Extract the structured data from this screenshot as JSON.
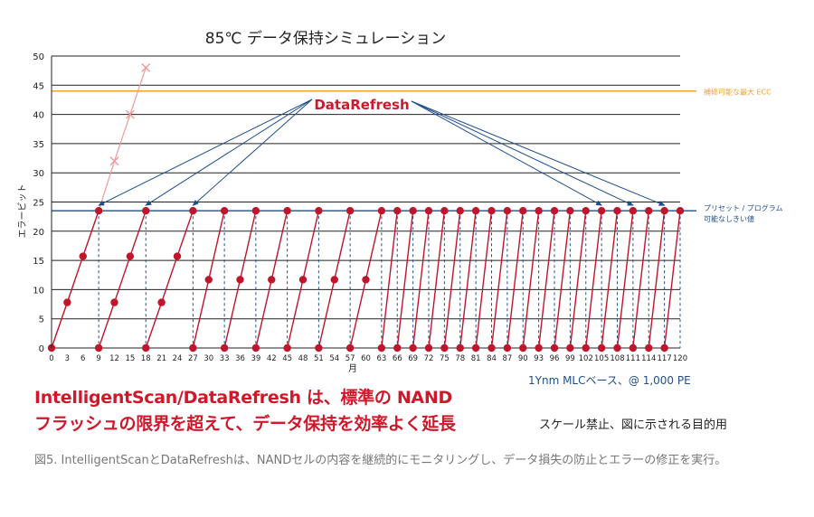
{
  "title": "85℃ データ保持シミュレーション",
  "headline": {
    "line1": "IntelligentScan/DataRefresh は、標準の NAND",
    "line2": "フラッシュの限界を超えて、データ保持を効率よく延長"
  },
  "note_scale": "スケール禁止、図に示される目的用",
  "note_basis": "1Ynm MLCベース、@ 1,000 PE",
  "caption": "図5. IntelligentScanとDataRefreshは、NANDセルの内容を継続的にモニタリングし、データ損失の防止とエラーの修正を実行。",
  "colors": {
    "refresh_line": "#c0152a",
    "raw_nand_line": "#f09a9a",
    "ecc_line": "#f0a030",
    "threshold_line": "#1f4e8c",
    "arrow": "#1f4e8c",
    "label_red": "#d0182a"
  },
  "chart_data": {
    "type": "line",
    "title": "85℃ データ保持シミュレーション",
    "xlabel": "月",
    "ylabel": "エラービット",
    "xlim": [
      0,
      120
    ],
    "ylim": [
      0,
      50
    ],
    "x_ticks": [
      0,
      3,
      6,
      9,
      12,
      15,
      18,
      21,
      24,
      27,
      30,
      33,
      36,
      39,
      42,
      45,
      48,
      51,
      54,
      57,
      60,
      63,
      66,
      69,
      72,
      75,
      78,
      81,
      84,
      87,
      90,
      93,
      96,
      99,
      102,
      105,
      108,
      111,
      114,
      117,
      120
    ],
    "y_ticks": [
      0,
      5,
      10,
      15,
      20,
      25,
      30,
      35,
      40,
      45,
      50
    ],
    "grid": true,
    "reference_lines": [
      {
        "name": "補修可能な最大 ECC",
        "y": 44
      },
      {
        "name": "プリセット / プログラム\n可能なしきい値",
        "y": 23.5
      }
    ],
    "refresh_label": "DataRefresh",
    "refresh_arrow_targets": [
      9,
      18,
      27,
      105,
      111,
      117
    ],
    "series": [
      {
        "name": "",
        "style": "raw",
        "points": [
          [
            0,
            0
          ],
          [
            3,
            7.8
          ],
          [
            6,
            15.7
          ],
          [
            9,
            23.5
          ],
          [
            12,
            32
          ],
          [
            15,
            40
          ],
          [
            18,
            48
          ]
        ]
      },
      {
        "name": "",
        "style": "refresh",
        "cycles": [
          {
            "start": 0,
            "points": [
              [
                0,
                0
              ],
              [
                3,
                7.8
              ],
              [
                6,
                15.7
              ],
              [
                9,
                23.5
              ]
            ]
          },
          {
            "start": 9,
            "points": [
              [
                9,
                0
              ],
              [
                12,
                7.8
              ],
              [
                15,
                15.7
              ],
              [
                18,
                23.5
              ]
            ]
          },
          {
            "start": 18,
            "points": [
              [
                18,
                0
              ],
              [
                21,
                7.8
              ],
              [
                24,
                15.7
              ],
              [
                27,
                23.5
              ]
            ]
          },
          {
            "start": 27,
            "points": [
              [
                27,
                0
              ],
              [
                30,
                11.7
              ],
              [
                33,
                23.5
              ]
            ]
          },
          {
            "start": 33,
            "points": [
              [
                33,
                0
              ],
              [
                36,
                11.7
              ],
              [
                39,
                23.5
              ]
            ]
          },
          {
            "start": 39,
            "points": [
              [
                39,
                0
              ],
              [
                42,
                11.7
              ],
              [
                45,
                23.5
              ]
            ]
          },
          {
            "start": 45,
            "points": [
              [
                45,
                0
              ],
              [
                48,
                11.7
              ],
              [
                51,
                23.5
              ]
            ]
          },
          {
            "start": 51,
            "points": [
              [
                51,
                0
              ],
              [
                54,
                11.7
              ],
              [
                57,
                23.5
              ]
            ]
          },
          {
            "start": 57,
            "points": [
              [
                57,
                0
              ],
              [
                60,
                11.7
              ],
              [
                63,
                23.5
              ]
            ]
          },
          {
            "start": 63,
            "points": [
              [
                63,
                0
              ],
              [
                66,
                23.5
              ]
            ]
          },
          {
            "start": 66,
            "points": [
              [
                66,
                0
              ],
              [
                69,
                23.5
              ]
            ]
          },
          {
            "start": 69,
            "points": [
              [
                69,
                0
              ],
              [
                72,
                23.5
              ]
            ]
          },
          {
            "start": 72,
            "points": [
              [
                72,
                0
              ],
              [
                75,
                23.5
              ]
            ]
          },
          {
            "start": 75,
            "points": [
              [
                75,
                0
              ],
              [
                78,
                23.5
              ]
            ]
          },
          {
            "start": 78,
            "points": [
              [
                78,
                0
              ],
              [
                81,
                23.5
              ]
            ]
          },
          {
            "start": 81,
            "points": [
              [
                81,
                0
              ],
              [
                84,
                23.5
              ]
            ]
          },
          {
            "start": 84,
            "points": [
              [
                84,
                0
              ],
              [
                87,
                23.5
              ]
            ]
          },
          {
            "start": 87,
            "points": [
              [
                87,
                0
              ],
              [
                90,
                23.5
              ]
            ]
          },
          {
            "start": 90,
            "points": [
              [
                90,
                0
              ],
              [
                93,
                23.5
              ]
            ]
          },
          {
            "start": 93,
            "points": [
              [
                93,
                0
              ],
              [
                96,
                23.5
              ]
            ]
          },
          {
            "start": 96,
            "points": [
              [
                96,
                0
              ],
              [
                99,
                23.5
              ]
            ]
          },
          {
            "start": 99,
            "points": [
              [
                99,
                0
              ],
              [
                102,
                23.5
              ]
            ]
          },
          {
            "start": 102,
            "points": [
              [
                102,
                0
              ],
              [
                105,
                23.5
              ]
            ]
          },
          {
            "start": 105,
            "points": [
              [
                105,
                0
              ],
              [
                108,
                23.5
              ]
            ]
          },
          {
            "start": 108,
            "points": [
              [
                108,
                0
              ],
              [
                111,
                23.5
              ]
            ]
          },
          {
            "start": 111,
            "points": [
              [
                111,
                0
              ],
              [
                114,
                23.5
              ]
            ]
          },
          {
            "start": 114,
            "points": [
              [
                114,
                0
              ],
              [
                117,
                23.5
              ]
            ]
          },
          {
            "start": 117,
            "points": [
              [
                117,
                0
              ],
              [
                120,
                23.5
              ]
            ]
          }
        ]
      }
    ]
  }
}
